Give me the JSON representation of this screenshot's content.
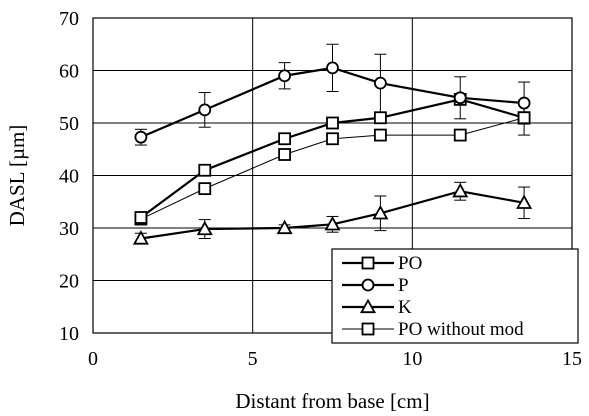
{
  "chart_data": {
    "type": "line",
    "title": "",
    "xlabel": "Distant from base [cm]",
    "ylabel": "DASL [µm]",
    "xlim": [
      0,
      15
    ],
    "ylim": [
      10,
      70
    ],
    "xticks": [
      0,
      5,
      10,
      15
    ],
    "yticks": [
      10,
      20,
      30,
      40,
      50,
      60,
      70
    ],
    "x_gridlines": [
      5,
      10
    ],
    "y_gridlines": [
      10,
      20,
      30,
      40,
      50,
      60,
      70
    ],
    "legend_position": "bottom-right",
    "series": [
      {
        "name": "PO",
        "marker": "square",
        "line_weight": "thick",
        "x": [
          1.5,
          3.5,
          6,
          7.5,
          9,
          11.5,
          13.5
        ],
        "y": [
          32,
          41,
          47,
          50,
          51,
          54.5,
          51
        ],
        "err": [
          0,
          0,
          0,
          0,
          0,
          0,
          0
        ]
      },
      {
        "name": "P",
        "marker": "circle",
        "line_weight": "thick",
        "x": [
          1.5,
          3.5,
          6,
          7.5,
          9,
          11.5,
          13.5
        ],
        "y": [
          47.3,
          52.5,
          59,
          60.5,
          57.6,
          54.8,
          53.8
        ],
        "err": [
          1.5,
          3.3,
          2.5,
          4.5,
          5.5,
          4,
          4
        ]
      },
      {
        "name": "K",
        "marker": "triangle",
        "line_weight": "thick",
        "x": [
          1.5,
          3.5,
          6,
          7.5,
          9,
          11.5,
          13.5
        ],
        "y": [
          28,
          29.8,
          30,
          30.7,
          32.8,
          37,
          34.8
        ],
        "err": [
          1,
          1.8,
          0.6,
          1.5,
          3.3,
          1.7,
          3
        ]
      },
      {
        "name": "PO without mod",
        "marker": "square",
        "line_weight": "thin",
        "x": [
          1.5,
          3.5,
          6,
          7.5,
          9,
          11.5,
          13.5
        ],
        "y": [
          31.7,
          37.5,
          44,
          47,
          47.7,
          47.7,
          51
        ],
        "err": [
          0,
          0,
          0,
          0,
          0,
          0,
          3.3
        ]
      }
    ]
  }
}
